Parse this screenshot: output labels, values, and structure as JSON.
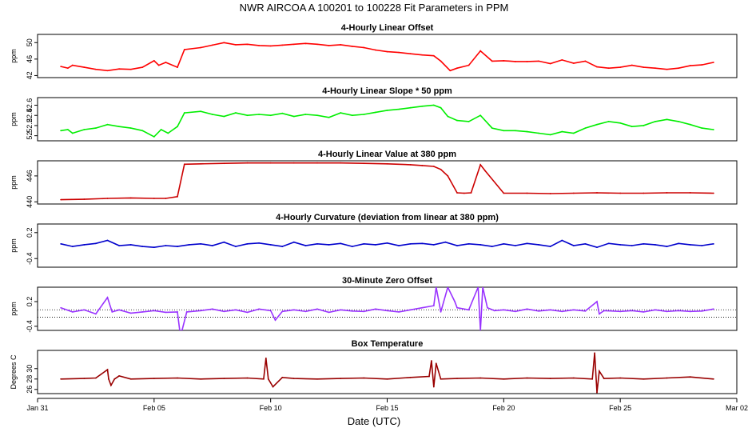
{
  "chart_data": {
    "type": "line",
    "title": "NWR   AIRCOA A   100201 to 100228   Fit Parameters in PPM",
    "xlabel": "Date (UTC)",
    "xlim": [
      0,
      30
    ],
    "x_ticks": [
      {
        "value": 0,
        "label": "Jan 31"
      },
      {
        "value": 5,
        "label": "Feb 05"
      },
      {
        "value": 10,
        "label": "Feb 10"
      },
      {
        "value": 15,
        "label": "Feb 15"
      },
      {
        "value": 20,
        "label": "Feb 20"
      },
      {
        "value": 25,
        "label": "Feb 25"
      },
      {
        "value": 30,
        "label": "Mar 02"
      }
    ],
    "panels": [
      {
        "title": "4-Hourly Linear Offset",
        "ylabel": "ppm",
        "ylim": [
          41.5,
          52
        ],
        "yticks": [
          42,
          46,
          50
        ],
        "color": "#ff0000",
        "x": [
          1,
          1.3,
          1.5,
          2,
          2.5,
          3,
          3.5,
          4,
          4.5,
          5,
          5.2,
          5.5,
          6,
          6.3,
          7,
          7.5,
          8,
          8.5,
          9,
          9.5,
          10,
          10.5,
          11,
          11.5,
          12,
          12.5,
          13,
          13.5,
          14,
          14.5,
          15,
          15.5,
          16,
          16.5,
          17,
          17.3,
          17.7,
          18,
          18.5,
          19,
          19.5,
          20,
          20.5,
          21,
          21.5,
          22,
          22.5,
          23,
          23.5,
          24,
          24.5,
          25,
          25.5,
          26,
          26.5,
          27,
          27.5,
          28,
          28.5,
          29
        ],
        "y": [
          44.2,
          43.8,
          44.5,
          44.0,
          43.5,
          43.2,
          43.6,
          43.5,
          44.0,
          45.6,
          44.5,
          45.2,
          44.0,
          48.3,
          48.8,
          49.4,
          50.0,
          49.5,
          49.6,
          49.3,
          49.2,
          49.4,
          49.6,
          49.8,
          49.6,
          49.3,
          49.5,
          49.1,
          48.8,
          48.2,
          47.8,
          47.6,
          47.3,
          47.0,
          46.8,
          45.5,
          43.2,
          43.8,
          44.5,
          48.0,
          45.5,
          45.6,
          45.4,
          45.4,
          45.5,
          44.9,
          45.8,
          45.0,
          45.5,
          44.1,
          43.8,
          44.0,
          44.5,
          44.0,
          43.8,
          43.5,
          43.8,
          44.4,
          44.6,
          45.2
        ]
      },
      {
        "title": "4-Hourly Linear Slope * 50 ppm",
        "ylabel": "ppm",
        "ylim": [
          51.9,
          52.75
        ],
        "yticks": [
          52.0,
          52.2,
          52.4,
          52.6
        ],
        "color": "#00ee00",
        "x": [
          1,
          1.3,
          1.5,
          2,
          2.5,
          3,
          3.5,
          4,
          4.5,
          5,
          5.3,
          5.6,
          6,
          6.3,
          7,
          7.5,
          8,
          8.5,
          9,
          9.5,
          10,
          10.5,
          11,
          11.5,
          12,
          12.5,
          13,
          13.5,
          14,
          14.5,
          15,
          15.5,
          16,
          16.5,
          17,
          17.3,
          17.6,
          18,
          18.5,
          19,
          19.5,
          20,
          20.5,
          21,
          21.5,
          22,
          22.5,
          23,
          23.5,
          24,
          24.5,
          25,
          25.5,
          26,
          26.5,
          27,
          27.5,
          28,
          28.5,
          29
        ],
        "y": [
          52.1,
          52.12,
          52.05,
          52.12,
          52.15,
          52.22,
          52.18,
          52.15,
          52.1,
          51.98,
          52.12,
          52.05,
          52.18,
          52.45,
          52.48,
          52.42,
          52.38,
          52.45,
          52.4,
          52.42,
          52.4,
          52.44,
          52.38,
          52.42,
          52.4,
          52.36,
          52.45,
          52.4,
          52.42,
          52.46,
          52.5,
          52.52,
          52.55,
          52.58,
          52.6,
          52.55,
          52.38,
          52.3,
          52.28,
          52.4,
          52.15,
          52.1,
          52.1,
          52.08,
          52.05,
          52.02,
          52.08,
          52.05,
          52.15,
          52.22,
          52.28,
          52.25,
          52.18,
          52.2,
          52.28,
          52.32,
          52.28,
          52.22,
          52.15,
          52.12
        ]
      },
      {
        "title": "4-Hourly Linear Value at 380 ppm",
        "ylabel": "ppm",
        "ylim": [
          439.5,
          449.5
        ],
        "yticks": [
          440,
          446
        ],
        "color": "#cc0000",
        "x": [
          1,
          2,
          3,
          4,
          5,
          5.5,
          6,
          6.3,
          7,
          8,
          9,
          10,
          11,
          12,
          13,
          14,
          15,
          16,
          16.5,
          17,
          17.3,
          17.6,
          18,
          18.3,
          18.6,
          19,
          19.2,
          20,
          21,
          22,
          23,
          24,
          25,
          26,
          27,
          28,
          29
        ],
        "y": [
          440.5,
          440.6,
          440.8,
          440.9,
          440.8,
          440.8,
          441.2,
          448.7,
          448.8,
          448.9,
          449.0,
          449.0,
          449.0,
          449.0,
          449.0,
          448.9,
          448.8,
          448.6,
          448.4,
          448.2,
          447.5,
          446.0,
          442.1,
          442.0,
          442.1,
          448.6,
          447.2,
          442.0,
          442.0,
          441.9,
          442.0,
          442.1,
          442.0,
          442.0,
          442.1,
          442.1,
          442.0
        ]
      },
      {
        "title": "4-Hourly Curvature (deviation from linear at 380 ppm)",
        "ylabel": "ppm",
        "ylim": [
          -0.6,
          0.4
        ],
        "yticks": [
          -0.4,
          0.2
        ],
        "color": "#0000cc",
        "x": [
          1,
          1.5,
          2,
          2.5,
          3,
          3.5,
          4,
          4.5,
          5,
          5.5,
          6,
          6.5,
          7,
          7.5,
          8,
          8.5,
          9,
          9.5,
          10,
          10.5,
          11,
          11.5,
          12,
          12.5,
          13,
          13.5,
          14,
          14.5,
          15,
          15.5,
          16,
          16.5,
          17,
          17.5,
          18,
          18.5,
          19,
          19.5,
          20,
          20.5,
          21,
          21.5,
          22,
          22.5,
          23,
          23.5,
          24,
          24.5,
          25,
          25.5,
          26,
          26.5,
          27,
          27.5,
          28,
          28.5,
          29
        ],
        "y": [
          -0.06,
          -0.12,
          -0.08,
          -0.05,
          0.02,
          -0.1,
          -0.08,
          -0.12,
          -0.14,
          -0.1,
          -0.12,
          -0.08,
          -0.06,
          -0.1,
          -0.02,
          -0.12,
          -0.06,
          -0.04,
          -0.08,
          -0.12,
          -0.02,
          -0.1,
          -0.06,
          -0.08,
          -0.05,
          -0.12,
          -0.06,
          -0.08,
          -0.04,
          -0.1,
          -0.06,
          -0.05,
          -0.08,
          -0.02,
          -0.1,
          -0.06,
          -0.08,
          -0.12,
          -0.06,
          -0.1,
          -0.05,
          -0.08,
          -0.12,
          0.02,
          -0.1,
          -0.06,
          -0.14,
          -0.05,
          -0.08,
          -0.1,
          -0.06,
          -0.08,
          -0.12,
          -0.05,
          -0.08,
          -0.1,
          -0.06
        ]
      },
      {
        "title": "30-Minute Zero Offset",
        "ylabel": "ppm",
        "ylim": [
          -0.5,
          0.55
        ],
        "yticks": [
          -0.4,
          0.2
        ],
        "color": "#9933ff",
        "x": [
          1,
          1.5,
          2,
          2.5,
          3,
          3.2,
          3.5,
          4,
          4.5,
          5,
          5.5,
          6,
          6.1,
          6.2,
          6.4,
          7,
          7.5,
          8,
          8.5,
          9,
          9.5,
          10,
          10.2,
          10.5,
          11,
          11.5,
          12,
          12.5,
          13,
          13.5,
          14,
          14.5,
          15,
          15.5,
          16,
          16.5,
          17,
          17.1,
          17.3,
          17.6,
          17.9,
          18,
          18.5,
          18.9,
          19,
          19.1,
          19.3,
          19.6,
          20,
          20.5,
          21,
          21.5,
          22,
          22.5,
          23,
          23.5,
          24,
          24.1,
          24.3,
          25,
          25.5,
          26,
          26.5,
          27,
          27.5,
          28,
          28.5,
          29
        ],
        "y": [
          0.05,
          -0.05,
          0.0,
          -0.1,
          0.3,
          -0.05,
          0.0,
          -0.08,
          -0.05,
          -0.02,
          -0.06,
          -0.05,
          -0.55,
          -0.55,
          -0.05,
          -0.02,
          0.02,
          -0.04,
          0.0,
          -0.06,
          0.02,
          -0.02,
          -0.25,
          -0.04,
          0.0,
          -0.04,
          0.02,
          -0.06,
          0.0,
          -0.03,
          -0.04,
          0.02,
          -0.02,
          -0.05,
          0.0,
          0.05,
          0.1,
          0.55,
          -0.05,
          0.55,
          0.2,
          0.05,
          0.0,
          0.55,
          -0.55,
          0.55,
          0.05,
          -0.02,
          0.0,
          -0.04,
          0.02,
          -0.03,
          0.0,
          -0.04,
          0.0,
          -0.03,
          0.2,
          -0.1,
          -0.02,
          -0.04,
          -0.02,
          -0.05,
          0.0,
          -0.04,
          -0.02,
          -0.04,
          -0.03,
          0.02
        ],
        "ref_lines": [
          0.0,
          -0.18
        ]
      },
      {
        "title": "Box Temperature",
        "ylabel": "Degrees C",
        "ylim": [
          25.2,
          33.5
        ],
        "yticks": [
          26,
          28,
          30
        ],
        "color": "#990000",
        "x": [
          1,
          2,
          2.5,
          3,
          3.05,
          3.15,
          3.3,
          3.5,
          4,
          5,
          6,
          7,
          8,
          9,
          9.7,
          9.8,
          9.9,
          10.1,
          10.5,
          11,
          12,
          13,
          14,
          15,
          16,
          16.8,
          16.9,
          17.0,
          17.1,
          17.3,
          18,
          19,
          20,
          21,
          22,
          23,
          23.8,
          23.9,
          24.0,
          24.1,
          24.3,
          25,
          26,
          27,
          28,
          29
        ],
        "y": [
          28.0,
          28.1,
          28.2,
          29.8,
          28.0,
          26.8,
          28.0,
          28.6,
          28.0,
          28.1,
          28.2,
          28.0,
          28.1,
          28.2,
          28.0,
          32.0,
          28.0,
          26.5,
          28.3,
          28.1,
          28.0,
          28.1,
          28.2,
          28.0,
          28.3,
          28.5,
          31.5,
          26.5,
          31.0,
          28.0,
          28.1,
          28.2,
          28.0,
          28.2,
          28.1,
          28.2,
          28.0,
          33.0,
          25.4,
          29.5,
          28.1,
          28.2,
          28.0,
          28.2,
          28.4,
          28.0
        ]
      }
    ]
  }
}
